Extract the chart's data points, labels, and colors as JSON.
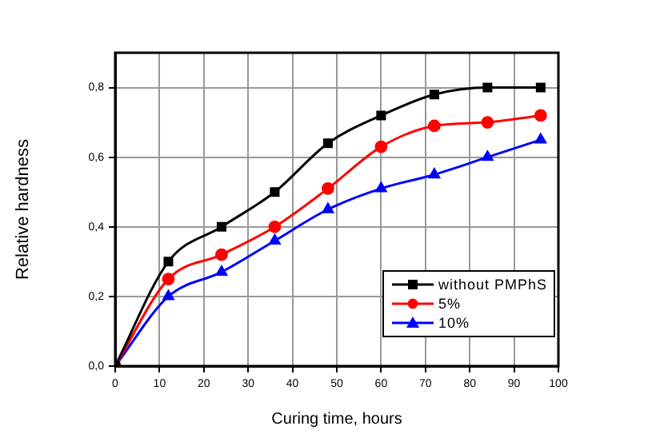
{
  "chart_data": {
    "type": "line",
    "xlabel": "Curing time, hours",
    "ylabel": "Relative hardness",
    "x": [
      0,
      12,
      24,
      36,
      48,
      60,
      72,
      84,
      96
    ],
    "series": [
      {
        "name": "without PMPhS",
        "color": "#000000",
        "marker": "square",
        "values": [
          0,
          0.3,
          0.4,
          0.5,
          0.64,
          0.72,
          0.78,
          0.8,
          0.8
        ]
      },
      {
        "name": "5%",
        "color": "#ff0000",
        "marker": "circle",
        "values": [
          0,
          0.25,
          0.32,
          0.4,
          0.51,
          0.63,
          0.69,
          0.7,
          0.72
        ]
      },
      {
        "name": "10%",
        "color": "#0000ff",
        "marker": "triangle",
        "values": [
          0,
          0.2,
          0.27,
          0.36,
          0.45,
          0.51,
          0.55,
          0.6,
          0.65
        ]
      }
    ],
    "xlim": [
      0,
      100
    ],
    "xticks": [
      0,
      10,
      20,
      30,
      40,
      50,
      60,
      70,
      80,
      90,
      100
    ],
    "ylim": [
      0,
      0.9
    ],
    "yticks": [
      {
        "value": 0,
        "label": "0,0"
      },
      {
        "value": 0.2,
        "label": "0,2"
      },
      {
        "value": 0.4,
        "label": "0,4"
      },
      {
        "value": 0.6,
        "label": "0,6"
      },
      {
        "value": 0.8,
        "label": "0,8"
      }
    ],
    "grid": true,
    "legend": "bottom right"
  }
}
